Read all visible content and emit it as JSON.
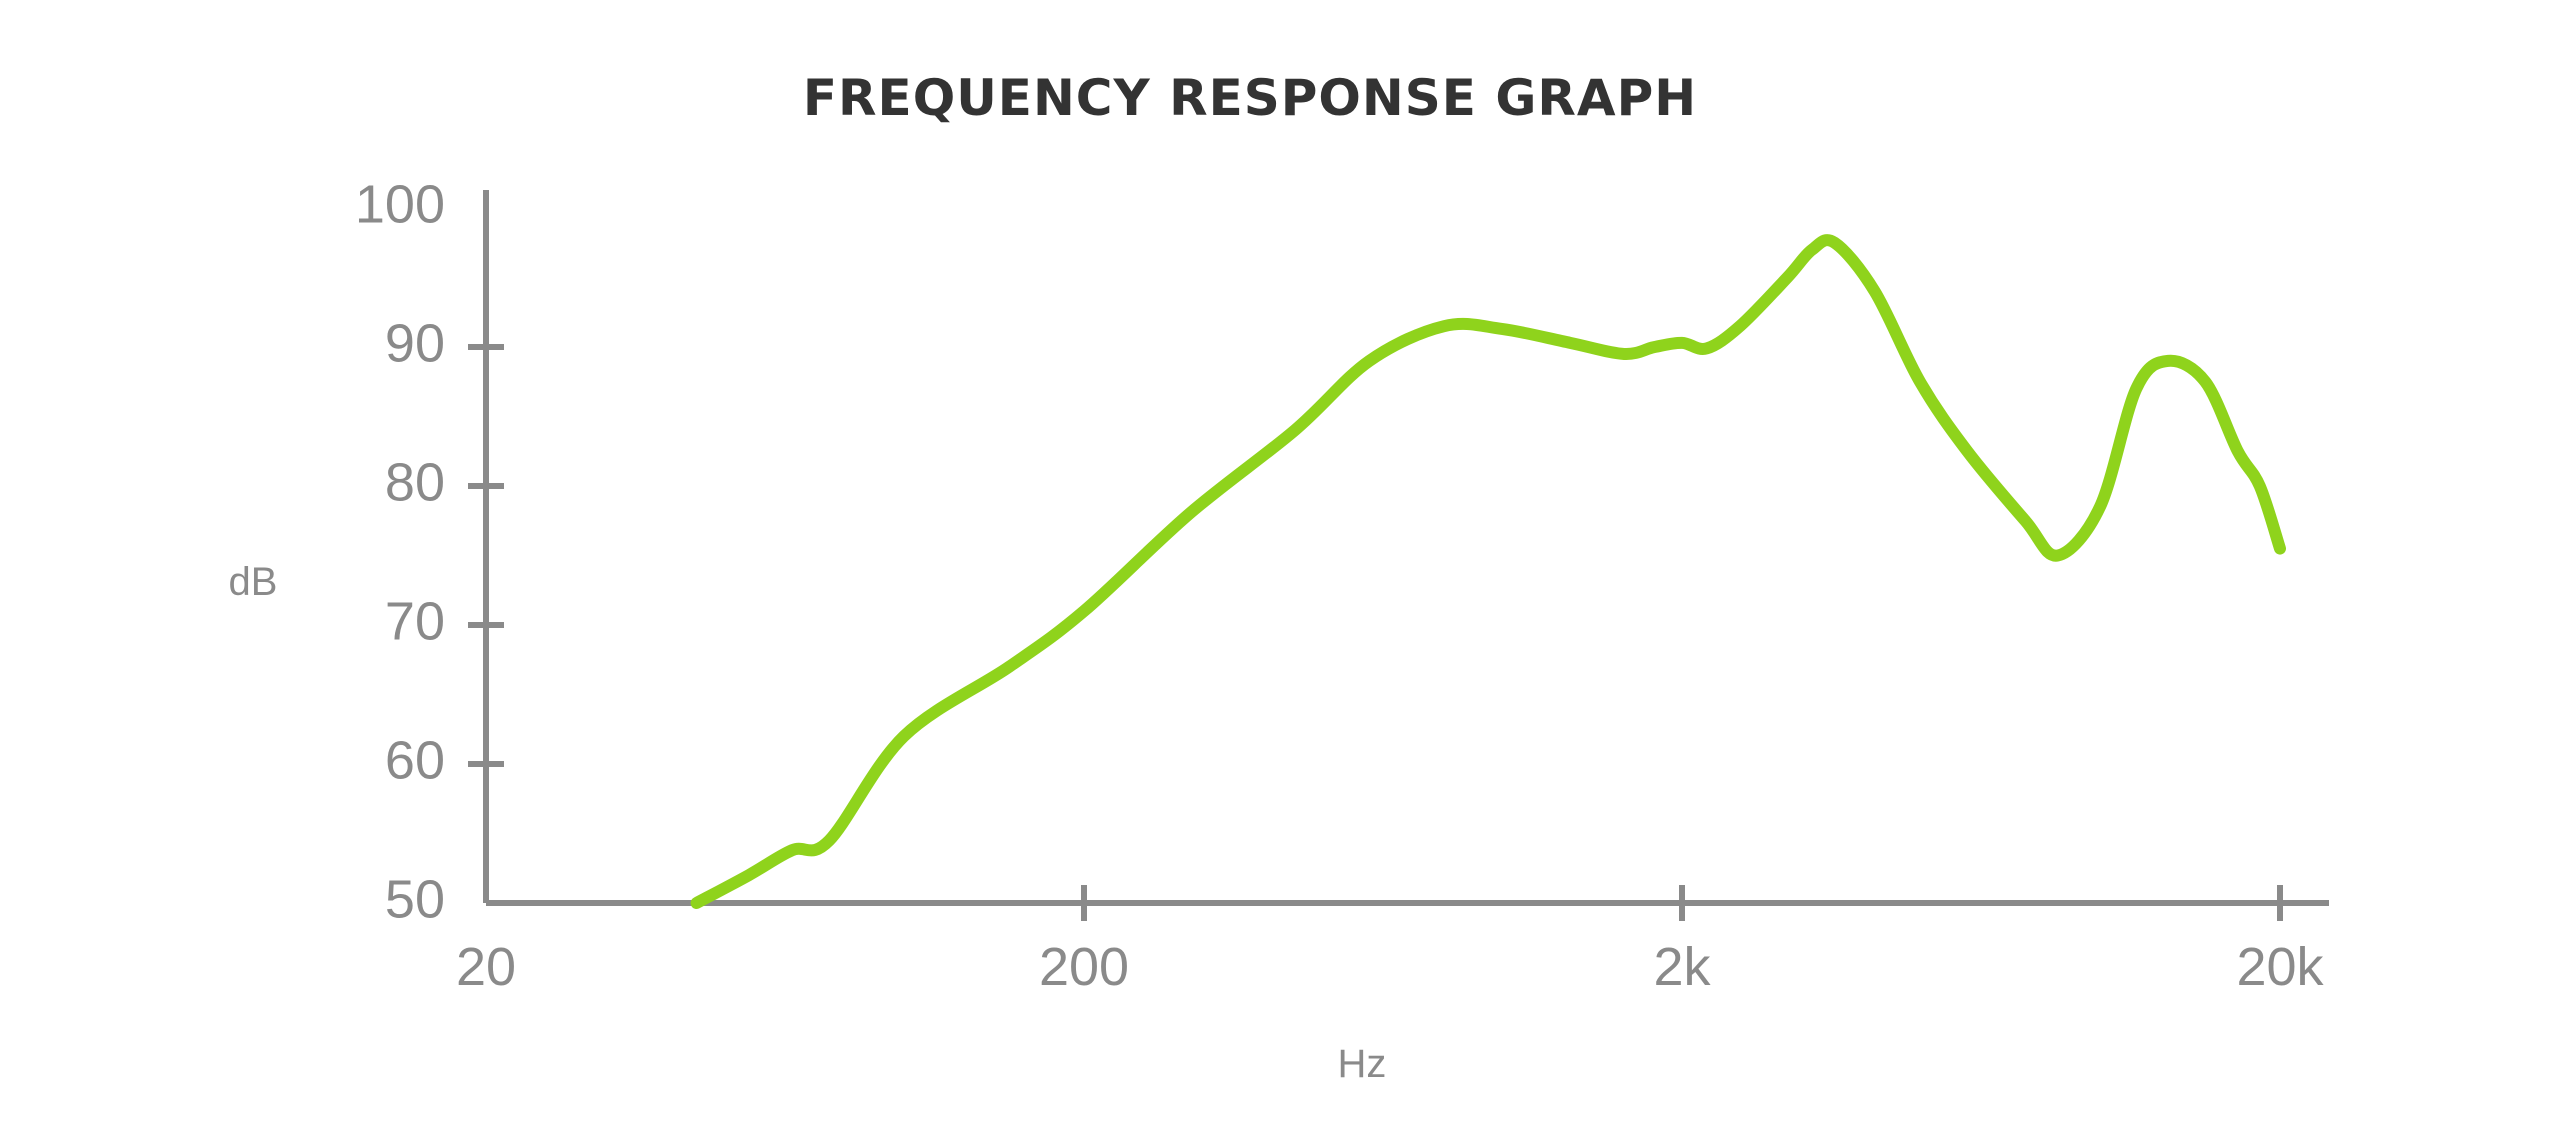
{
  "chart_data": {
    "type": "line",
    "title": "FREQUENCY RESPONSE GRAPH",
    "xlabel": "Hz",
    "ylabel": "dB",
    "x_scale": "log",
    "xlim": [
      20,
      20000
    ],
    "ylim": [
      50,
      100
    ],
    "x_ticks": [
      {
        "value": 20,
        "label": "20"
      },
      {
        "value": 200,
        "label": "200"
      },
      {
        "value": 2000,
        "label": "2k"
      },
      {
        "value": 20000,
        "label": "20k"
      }
    ],
    "y_ticks": [
      {
        "value": 100,
        "label": "100"
      },
      {
        "value": 90,
        "label": "90"
      },
      {
        "value": 80,
        "label": "80"
      },
      {
        "value": 70,
        "label": "70"
      },
      {
        "value": 60,
        "label": "60"
      },
      {
        "value": 50,
        "label": "50"
      }
    ],
    "grid": false,
    "colors": {
      "line": "#8fd31c",
      "axis": "#8a8a8a",
      "title": "#333333"
    },
    "series": [
      {
        "x": [
          45,
          55,
          65,
          75,
          100,
          150,
          200,
          300,
          450,
          600,
          800,
          1000,
          1300,
          1600,
          1800,
          2000,
          2200,
          2500,
          3000,
          3300,
          3600,
          4200,
          5000,
          6000,
          7500,
          8500,
          10000,
          11500,
          13000,
          15000,
          17000,
          18500,
          20000
        ],
        "y": [
          50,
          52,
          53.8,
          54.5,
          62,
          67,
          71,
          78,
          84,
          89,
          91.5,
          91.3,
          90.3,
          89.5,
          90,
          90.3,
          89.9,
          91.5,
          95,
          97,
          97.5,
          94,
          87.5,
          82.5,
          77.5,
          75,
          78.5,
          87,
          89,
          87.5,
          82.5,
          80,
          75.5
        ]
      }
    ]
  }
}
